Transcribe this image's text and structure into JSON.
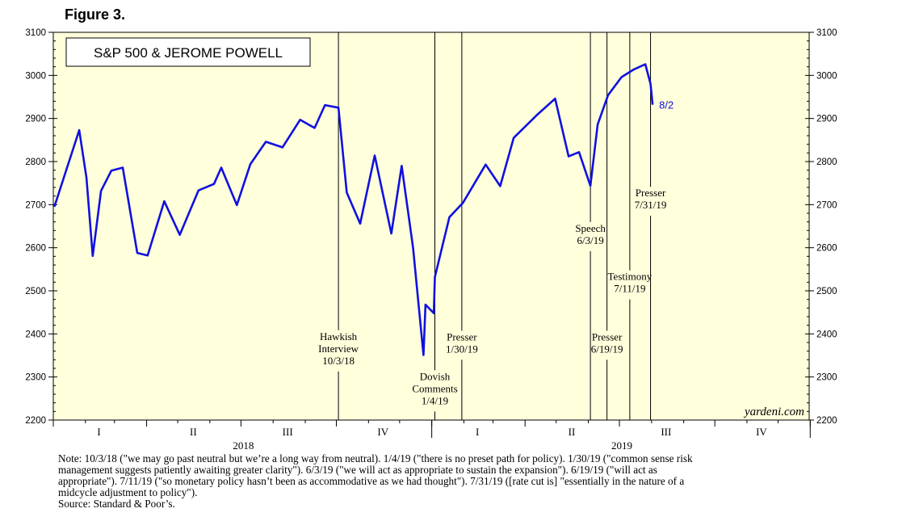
{
  "figure_label": "Figure 3.",
  "chart_data": {
    "type": "line",
    "title": "S&P 500 & JEROME POWELL",
    "ylim": [
      2200,
      3100
    ],
    "y_ticks": [
      2200,
      2300,
      2400,
      2500,
      2600,
      2700,
      2800,
      2900,
      3000,
      3100
    ],
    "x_range": [
      "2018-01-01",
      "2019-12-31"
    ],
    "quarters": [
      {
        "label": "I",
        "date": "2018-02-14"
      },
      {
        "label": "II",
        "date": "2018-05-16"
      },
      {
        "label": "III",
        "date": "2018-08-15"
      },
      {
        "label": "IV",
        "date": "2018-11-15"
      },
      {
        "label": "I",
        "date": "2019-02-14"
      },
      {
        "label": "II",
        "date": "2019-05-16"
      },
      {
        "label": "III",
        "date": "2019-08-15"
      },
      {
        "label": "IV",
        "date": "2019-11-15"
      }
    ],
    "years": [
      {
        "label": "2018",
        "date": "2018-07-01"
      },
      {
        "label": "2019",
        "date": "2019-07-01"
      }
    ],
    "series": [
      {
        "name": "S&P 500",
        "color": "#1010e0",
        "end_label": "8/2",
        "points": [
          [
            "2018-01-02",
            2695
          ],
          [
            "2018-01-26",
            2873
          ],
          [
            "2018-02-02",
            2762
          ],
          [
            "2018-02-08",
            2581
          ],
          [
            "2018-02-16",
            2732
          ],
          [
            "2018-02-26",
            2779
          ],
          [
            "2018-03-09",
            2786
          ],
          [
            "2018-03-23",
            2588
          ],
          [
            "2018-04-02",
            2582
          ],
          [
            "2018-04-18",
            2708
          ],
          [
            "2018-05-03",
            2630
          ],
          [
            "2018-05-21",
            2733
          ],
          [
            "2018-06-05",
            2748
          ],
          [
            "2018-06-12",
            2786
          ],
          [
            "2018-06-27",
            2699
          ],
          [
            "2018-07-10",
            2794
          ],
          [
            "2018-07-25",
            2846
          ],
          [
            "2018-08-10",
            2833
          ],
          [
            "2018-08-27",
            2897
          ],
          [
            "2018-09-10",
            2878
          ],
          [
            "2018-09-20",
            2931
          ],
          [
            "2018-10-03",
            2925
          ],
          [
            "2018-10-11",
            2728
          ],
          [
            "2018-10-24",
            2656
          ],
          [
            "2018-11-07",
            2814
          ],
          [
            "2018-11-23",
            2633
          ],
          [
            "2018-12-03",
            2790
          ],
          [
            "2018-12-14",
            2600
          ],
          [
            "2018-12-24",
            2351
          ],
          [
            "2018-12-26",
            2468
          ],
          [
            "2019-01-03",
            2448
          ],
          [
            "2019-01-04",
            2532
          ],
          [
            "2019-01-18",
            2671
          ],
          [
            "2019-01-31",
            2704
          ],
          [
            "2019-02-22",
            2793
          ],
          [
            "2019-03-08",
            2743
          ],
          [
            "2019-03-21",
            2855
          ],
          [
            "2019-04-12",
            2907
          ],
          [
            "2019-04-30",
            2946
          ],
          [
            "2019-05-13",
            2812
          ],
          [
            "2019-05-23",
            2822
          ],
          [
            "2019-06-03",
            2744
          ],
          [
            "2019-06-10",
            2886
          ],
          [
            "2019-06-20",
            2954
          ],
          [
            "2019-07-03",
            2996
          ],
          [
            "2019-07-15",
            3014
          ],
          [
            "2019-07-26",
            3026
          ],
          [
            "2019-07-31",
            2980
          ],
          [
            "2019-08-02",
            2932
          ]
        ]
      }
    ],
    "events": [
      {
        "date": "2018-10-03",
        "lines": [
          "Hawkish",
          "Interview",
          "10/3/18"
        ],
        "label_value": 2386
      },
      {
        "date": "2019-01-04",
        "lines": [
          "Dovish",
          "Comments",
          "1/4/19"
        ],
        "label_value": 2293
      },
      {
        "date": "2019-01-30",
        "lines": [
          "Presser",
          "1/30/19"
        ],
        "label_value": 2385
      },
      {
        "date": "2019-06-03",
        "lines": [
          "Speech",
          "6/3/19"
        ],
        "label_value": 2637
      },
      {
        "date": "2019-06-19",
        "lines": [
          "Presser",
          "6/19/19"
        ],
        "label_value": 2385
      },
      {
        "date": "2019-07-11",
        "lines": [
          "Testimony",
          "7/11/19"
        ],
        "label_value": 2525
      },
      {
        "date": "2019-07-31",
        "lines": [
          "Presser",
          "7/31/19"
        ],
        "label_value": 2719
      }
    ],
    "watermark": "yardeni.com"
  },
  "note": {
    "lines": [
      "Note: 10/3/18 (\"we may go past neutral but we’re a long way from neutral). 1/4/19 (\"there is no preset path for policy). 1/30/19 (\"common sense risk",
      "management suggests patiently awaiting greater clarity\"). 6/3/19 (\"we will act as appropriate to sustain the expansion\"). 6/19/19 (\"will act as",
      "appropriate\"). 7/11/19 (\"so monetary policy hasn’t been as accommodative as we had thought\"). 7/31/19 ([rate cut is] \"essentially in the nature of a",
      "midcycle adjustment to policy\")."
    ],
    "source": "Source: Standard & Poor’s."
  }
}
